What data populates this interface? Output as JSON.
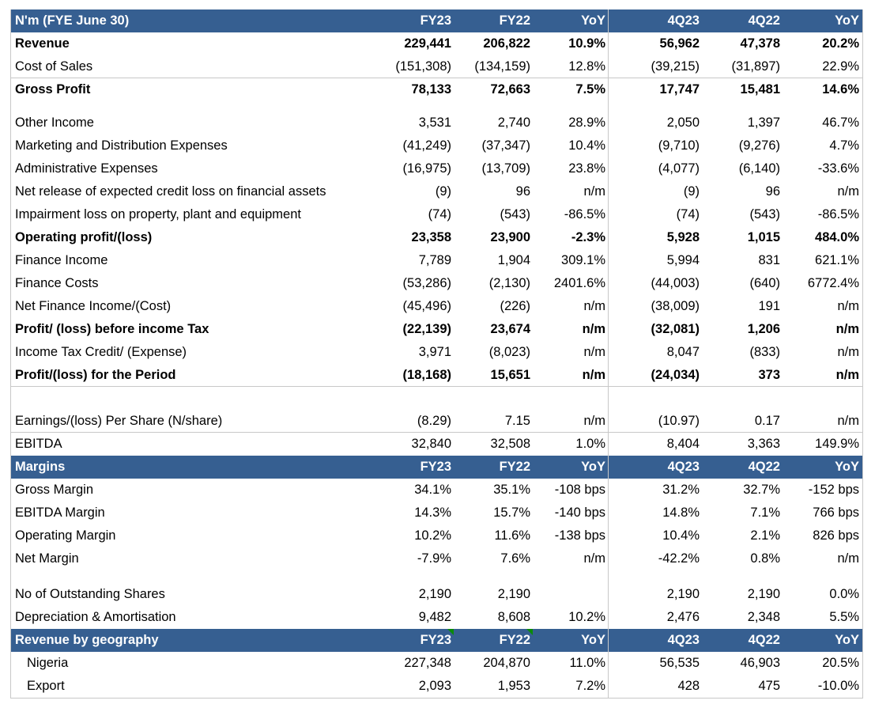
{
  "sections": [
    {
      "header": {
        "label": "N'm (FYE June 30)",
        "cols": [
          "FY23",
          "FY22",
          "YoY",
          "4Q23",
          "4Q22",
          "YoY"
        ]
      },
      "groups": [
        [
          {
            "label": "Revenue",
            "bold": true,
            "values": [
              "229,441",
              "206,822",
              "10.9%",
              "56,962",
              "47,378",
              "20.2%"
            ]
          },
          {
            "label": "Cost of Sales",
            "rule": true,
            "values": [
              "(151,308)",
              "(134,159)",
              "12.8%",
              "(39,215)",
              "(31,897)",
              "22.9%"
            ]
          },
          {
            "label": "Gross Profit",
            "bold": true,
            "values": [
              "78,133",
              "72,663",
              "7.5%",
              "17,747",
              "15,481",
              "14.6%"
            ]
          }
        ],
        [
          {
            "label": "Other Income",
            "values": [
              "3,531",
              "2,740",
              "28.9%",
              "2,050",
              "1,397",
              "46.7%"
            ]
          },
          {
            "label": "Marketing and Distribution Expenses",
            "values": [
              "(41,249)",
              "(37,347)",
              "10.4%",
              "(9,710)",
              "(9,276)",
              "4.7%"
            ]
          },
          {
            "label": "Administrative Expenses",
            "values": [
              "(16,975)",
              "(13,709)",
              "23.8%",
              "(4,077)",
              "(6,140)",
              "-33.6%"
            ]
          },
          {
            "label": "Net release of expected credit loss on financial assets",
            "values": [
              "(9)",
              "96",
              "n/m",
              "(9)",
              "96",
              "n/m"
            ]
          },
          {
            "label": "Impairment loss on property, plant and equipment",
            "values": [
              "(74)",
              "(543)",
              "-86.5%",
              "(74)",
              "(543)",
              "-86.5%"
            ]
          },
          {
            "label": "Operating profit/(loss)",
            "bold": true,
            "values": [
              "23,358",
              "23,900",
              "-2.3%",
              "5,928",
              "1,015",
              "484.0%"
            ]
          },
          {
            "label": "Finance Income",
            "values": [
              "7,789",
              "1,904",
              "309.1%",
              "5,994",
              "831",
              "621.1%"
            ]
          },
          {
            "label": "Finance Costs",
            "values": [
              "(53,286)",
              "(2,130)",
              "2401.6%",
              "(44,003)",
              "(640)",
              "6772.4%"
            ]
          },
          {
            "label": "Net Finance Income/(Cost)",
            "values": [
              "(45,496)",
              "(226)",
              "n/m",
              "(38,009)",
              "191",
              "n/m"
            ]
          },
          {
            "label": "Profit/ (loss) before income Tax",
            "bold": true,
            "values": [
              "(22,139)",
              "23,674",
              "n/m",
              "(32,081)",
              "1,206",
              "n/m"
            ]
          },
          {
            "label": "Income Tax Credit/ (Expense)",
            "values": [
              "3,971",
              "(8,023)",
              "n/m",
              "8,047",
              "(833)",
              "n/m"
            ]
          },
          {
            "label": "Profit/(loss) for the Period",
            "bold": true,
            "rule": true,
            "values": [
              "(18,168)",
              "15,651",
              "n/m",
              "(24,034)",
              "373",
              "n/m"
            ]
          }
        ],
        [
          {
            "label": "Earnings/(loss) Per Share (N/share)",
            "rule": true,
            "values": [
              "(8.29)",
              "7.15",
              "n/m",
              "(10.97)",
              "0.17",
              "n/m"
            ]
          },
          {
            "label": "EBITDA",
            "values": [
              "32,840",
              "32,508",
              "1.0%",
              "8,404",
              "3,363",
              "149.9%"
            ]
          }
        ]
      ]
    },
    {
      "header": {
        "label": "Margins",
        "cols": [
          "FY23",
          "FY22",
          "YoY",
          "4Q23",
          "4Q22",
          "YoY"
        ]
      },
      "groups": [
        [
          {
            "label": "Gross Margin",
            "values": [
              "34.1%",
              "35.1%",
              "-108 bps",
              "31.2%",
              "32.7%",
              "-152 bps"
            ]
          },
          {
            "label": "EBITDA Margin",
            "values": [
              "14.3%",
              "15.7%",
              "-140 bps",
              "14.8%",
              "7.1%",
              "766 bps"
            ]
          },
          {
            "label": "Operating Margin",
            "values": [
              "10.2%",
              "11.6%",
              "-138 bps",
              "10.4%",
              "2.1%",
              "826 bps"
            ]
          },
          {
            "label": "Net Margin",
            "values": [
              "-7.9%",
              "7.6%",
              "n/m",
              "-42.2%",
              "0.8%",
              "n/m"
            ]
          }
        ],
        [
          {
            "label": "No of Outstanding Shares",
            "values": [
              "2,190",
              "2,190",
              "",
              "2,190",
              "2,190",
              "0.0%"
            ]
          },
          {
            "label": "Depreciation & Amortisation",
            "values": [
              "9,482",
              "8,608",
              "10.2%",
              "2,476",
              "2,348",
              "5.5%"
            ]
          }
        ]
      ]
    },
    {
      "header": {
        "label": "Revenue by geography",
        "cols": [
          "FY23",
          "FY22",
          "YoY",
          "4Q23",
          "4Q22",
          "YoY"
        ],
        "comment_markers": [
          0,
          1
        ]
      },
      "groups": [
        [
          {
            "label": "Nigeria",
            "indent": true,
            "values": [
              "227,348",
              "204,870",
              "11.0%",
              "56,535",
              "46,903",
              "20.5%"
            ]
          },
          {
            "label": "Export",
            "indent": true,
            "values": [
              "2,093",
              "1,953",
              "7.2%",
              "428",
              "475",
              "-10.0%"
            ]
          }
        ]
      ]
    }
  ],
  "colors": {
    "header_bg": "#365f91",
    "header_text": "#ffffff",
    "gridline": "#c8c8c8",
    "comment_marker": "#0a8a0a"
  }
}
